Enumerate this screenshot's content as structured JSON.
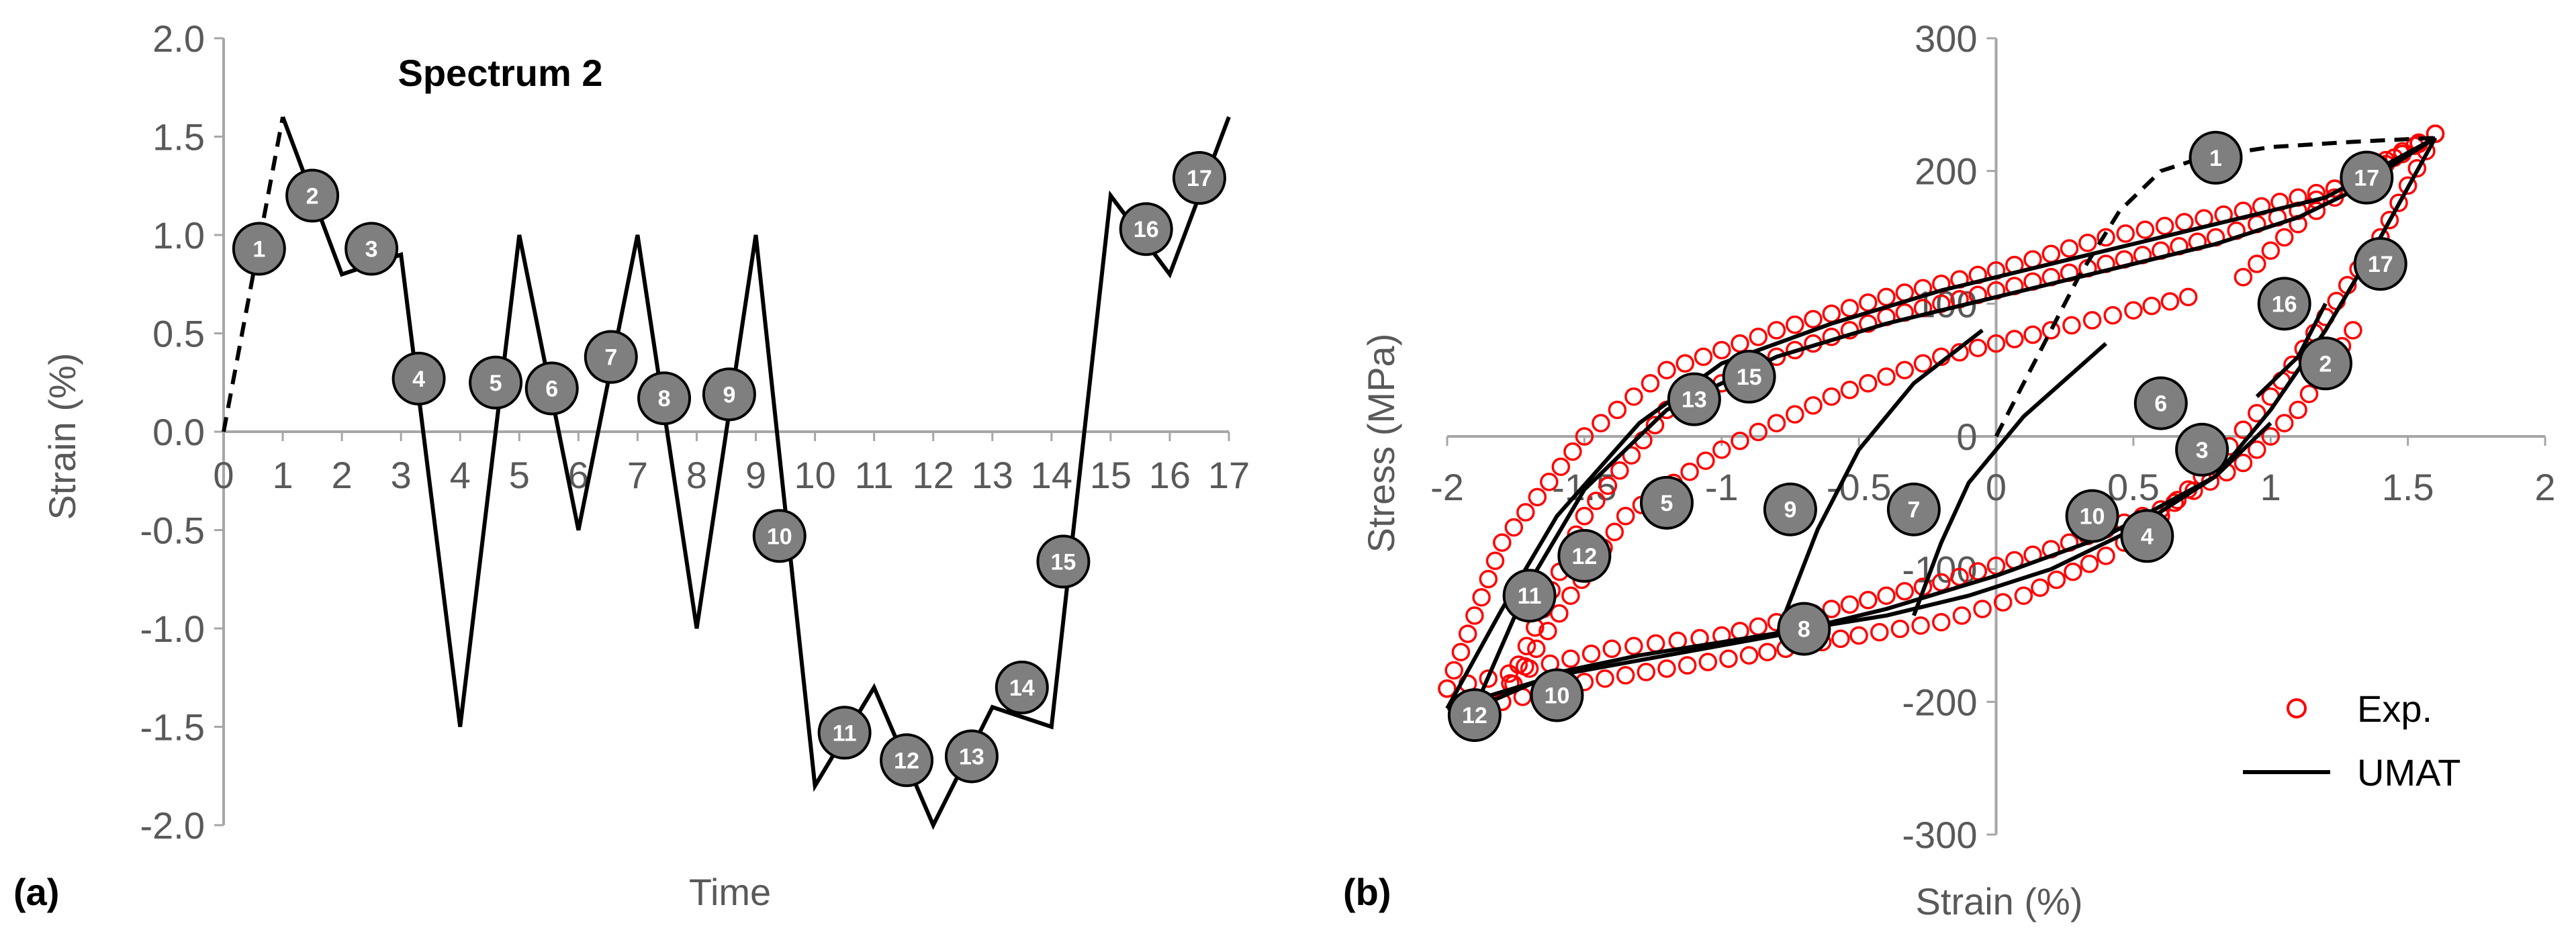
{
  "chart_data": [
    {
      "type": "line",
      "panel_label": "(a)",
      "title": "Spectrum 2",
      "xlabel": "Time",
      "ylabel": "Strain (%)",
      "xlim": [
        0,
        17
      ],
      "ylim": [
        -2.0,
        2.0
      ],
      "x_ticks": [
        "0",
        "1",
        "2",
        "3",
        "4",
        "5",
        "6",
        "7",
        "8",
        "9",
        "10",
        "11",
        "12",
        "13",
        "14",
        "15",
        "16",
        "17"
      ],
      "y_ticks": [
        "2.0",
        "1.5",
        "1.0",
        "0.5",
        "0.0",
        "-0.5",
        "-1.0",
        "-1.5",
        "-2.0"
      ],
      "grid": false,
      "series": [
        {
          "style": "dashed",
          "x": [
            0,
            1
          ],
          "y": [
            0,
            1.6
          ]
        },
        {
          "style": "solid",
          "x": [
            1,
            2,
            3,
            4,
            5,
            6,
            7,
            8,
            9,
            10,
            11,
            12,
            13,
            14,
            15,
            16,
            17
          ],
          "y": [
            1.6,
            0.8,
            0.9,
            -1.5,
            1.0,
            -0.5,
            1.0,
            -1.0,
            1.0,
            -1.8,
            -1.3,
            -2.0,
            -1.4,
            -1.5,
            1.2,
            0.8,
            1.6
          ]
        }
      ],
      "annotations": [
        {
          "label": "1",
          "x": 0.6,
          "y": 0.93
        },
        {
          "label": "2",
          "x": 1.5,
          "y": 1.2
        },
        {
          "label": "3",
          "x": 2.5,
          "y": 0.93
        },
        {
          "label": "4",
          "x": 3.3,
          "y": 0.27
        },
        {
          "label": "5",
          "x": 4.6,
          "y": 0.25
        },
        {
          "label": "6",
          "x": 5.55,
          "y": 0.22
        },
        {
          "label": "7",
          "x": 6.55,
          "y": 0.38
        },
        {
          "label": "8",
          "x": 7.45,
          "y": 0.17
        },
        {
          "label": "9",
          "x": 8.55,
          "y": 0.19
        },
        {
          "label": "10",
          "x": 9.4,
          "y": -0.53
        },
        {
          "label": "11",
          "x": 10.5,
          "y": -1.53
        },
        {
          "label": "12",
          "x": 11.55,
          "y": -1.67
        },
        {
          "label": "13",
          "x": 12.65,
          "y": -1.65
        },
        {
          "label": "14",
          "x": 13.5,
          "y": -1.3
        },
        {
          "label": "15",
          "x": 14.2,
          "y": -0.66
        },
        {
          "label": "16",
          "x": 15.6,
          "y": 1.03
        },
        {
          "label": "17",
          "x": 16.5,
          "y": 1.29
        }
      ]
    },
    {
      "type": "scatter",
      "panel_label": "(b)",
      "xlabel": "Strain (%)",
      "ylabel": "Stress (MPa)",
      "xlim": [
        -2,
        2
      ],
      "ylim": [
        -300,
        300
      ],
      "x_ticks": [
        "-2",
        "-1.5",
        "-1",
        "-0.5",
        "0",
        "0.5",
        "1",
        "1.5",
        "2"
      ],
      "y_ticks": [
        "300",
        "200",
        "100",
        "0",
        "-100",
        "-200",
        "-300"
      ],
      "grid": false,
      "legend": {
        "position": "bottom-right",
        "entries": [
          "Exp.",
          "UMAT"
        ]
      },
      "series": [
        {
          "name": "Exp.",
          "marker": "circle-open",
          "color": "#ff0000",
          "branches": [
            {
              "x": [
                0.9,
                1.1,
                1.3,
                1.45,
                1.6
              ],
              "y": [
                120,
                160,
                190,
                210,
                228
              ]
            },
            {
              "x": [
                1.6,
                1.4,
                1.2,
                1.0,
                0.8
              ],
              "y": [
                228,
                150,
                90,
                30,
                -20
              ]
            },
            {
              "x": [
                0.8,
                0.6,
                0.4,
                0.1,
                -0.2,
                -0.5,
                -0.9,
                -1.2,
                -1.5,
                -1.8
              ],
              "y": [
                -20,
                -60,
                -90,
                -120,
                -140,
                -150,
                -165,
                -175,
                -185,
                -200
              ]
            },
            {
              "x": [
                -1.8,
                -1.5,
                -1.2,
                -0.8,
                -0.4,
                0.0,
                0.4,
                0.8,
                1.1,
                1.3,
                1.6
              ],
              "y": [
                -200,
                -60,
                20,
                60,
                90,
                110,
                130,
                150,
                170,
                195,
                228
              ]
            },
            {
              "x": [
                1.6,
                1.3,
                0.9,
                0.4,
                0.0,
                -0.4,
                -0.8,
                -1.2,
                -1.5,
                -1.8,
                -2.0
              ],
              "y": [
                228,
                190,
                170,
                150,
                125,
                105,
                80,
                50,
                0,
                -80,
                -190
              ]
            },
            {
              "x": [
                -2.0,
                -1.7,
                -1.4,
                -1.0,
                -0.6,
                -0.2,
                0.2,
                0.6,
                0.9,
                1.1,
                1.3
              ],
              "y": [
                -190,
                -175,
                -160,
                -150,
                -130,
                -110,
                -85,
                -55,
                -20,
                20,
                80
              ]
            },
            {
              "x": [
                -1.8,
                -1.55,
                -1.35,
                -1.0,
                -0.6,
                -0.2,
                0.2,
                0.5,
                0.7
              ],
              "y": [
                -200,
                -120,
                -60,
                -10,
                30,
                60,
                80,
                95,
                105
              ]
            }
          ]
        },
        {
          "name": "UMAT",
          "style": "solid",
          "color": "#000000",
          "branches": [
            {
              "x": [
                0,
                0.15,
                0.3,
                0.45,
                0.6,
                0.75
              ],
              "y": [
                0,
                60,
                120,
                170,
                200,
                210
              ],
              "style": "dashed"
            },
            {
              "x": [
                0.75,
                1.0,
                1.3,
                1.6
              ],
              "y": [
                210,
                218,
                222,
                225
              ],
              "style": "dashed"
            },
            {
              "x": [
                1.6,
                1.4,
                1.2,
                1.0,
                0.8
              ],
              "y": [
                225,
                150,
                80,
                20,
                -30
              ]
            },
            {
              "x": [
                0.8,
                0.5,
                0.2,
                -0.1,
                -0.4,
                -0.7,
                -1.0,
                -1.3,
                -1.6,
                -1.9
              ],
              "y": [
                -30,
                -70,
                -100,
                -120,
                -135,
                -145,
                -155,
                -165,
                -178,
                -205
              ]
            },
            {
              "x": [
                -1.9,
                -1.7,
                -1.5,
                -1.2,
                -0.8,
                -0.4,
                0.0,
                0.4,
                0.8,
                1.1,
                1.3,
                1.6
              ],
              "y": [
                -205,
                -110,
                -40,
                20,
                60,
                85,
                105,
                125,
                145,
                165,
                185,
                225
              ]
            },
            {
              "x": [
                1.6,
                1.2,
                0.8,
                0.3,
                -0.2,
                -0.6,
                -1.0,
                -1.3,
                -1.6,
                -1.8,
                -2.0
              ],
              "y": [
                225,
                180,
                160,
                135,
                110,
                85,
                55,
                10,
                -60,
                -130,
                -205
              ]
            },
            {
              "x": [
                -2.0,
                -1.6,
                -1.2,
                -0.8,
                -0.4,
                0.0,
                0.4,
                0.8,
                1.0
              ],
              "y": [
                -205,
                -180,
                -165,
                -150,
                -130,
                -105,
                -75,
                -30,
                10
              ]
            },
            {
              "x": [
                -0.8,
                -0.65,
                -0.5,
                -0.3,
                -0.05
              ],
              "y": [
                -150,
                -70,
                -10,
                40,
                80
              ]
            },
            {
              "x": [
                -0.3,
                -0.2,
                -0.1,
                0.1,
                0.4
              ],
              "y": [
                -135,
                -80,
                -35,
                15,
                70
              ]
            },
            {
              "x": [
                1.2,
                1.1,
                1.0,
                0.95
              ],
              "y": [
                100,
                60,
                40,
                30
              ]
            }
          ]
        }
      ],
      "annotations": [
        {
          "label": "1",
          "x": 0.8,
          "y": 210
        },
        {
          "label": "2",
          "x": 1.2,
          "y": 55
        },
        {
          "label": "3",
          "x": 0.75,
          "y": -10
        },
        {
          "label": "4",
          "x": 0.55,
          "y": -75
        },
        {
          "label": "5",
          "x": -1.2,
          "y": -50
        },
        {
          "label": "6",
          "x": 0.6,
          "y": 25
        },
        {
          "label": "7",
          "x": -0.3,
          "y": -55
        },
        {
          "label": "8",
          "x": -0.7,
          "y": -145
        },
        {
          "label": "9",
          "x": -0.75,
          "y": -55
        },
        {
          "label": "10",
          "x": 0.35,
          "y": -60
        },
        {
          "label": "10",
          "x": -1.6,
          "y": -195
        },
        {
          "label": "11",
          "x": -1.7,
          "y": -120
        },
        {
          "label": "12",
          "x": -1.5,
          "y": -90
        },
        {
          "label": "12",
          "x": -1.9,
          "y": -210
        },
        {
          "label": "13",
          "x": -1.1,
          "y": 28
        },
        {
          "label": "15",
          "x": -0.9,
          "y": 45
        },
        {
          "label": "16",
          "x": 1.05,
          "y": 100
        },
        {
          "label": "17",
          "x": 1.35,
          "y": 195
        },
        {
          "label": "17",
          "x": 1.4,
          "y": 130
        }
      ]
    }
  ]
}
